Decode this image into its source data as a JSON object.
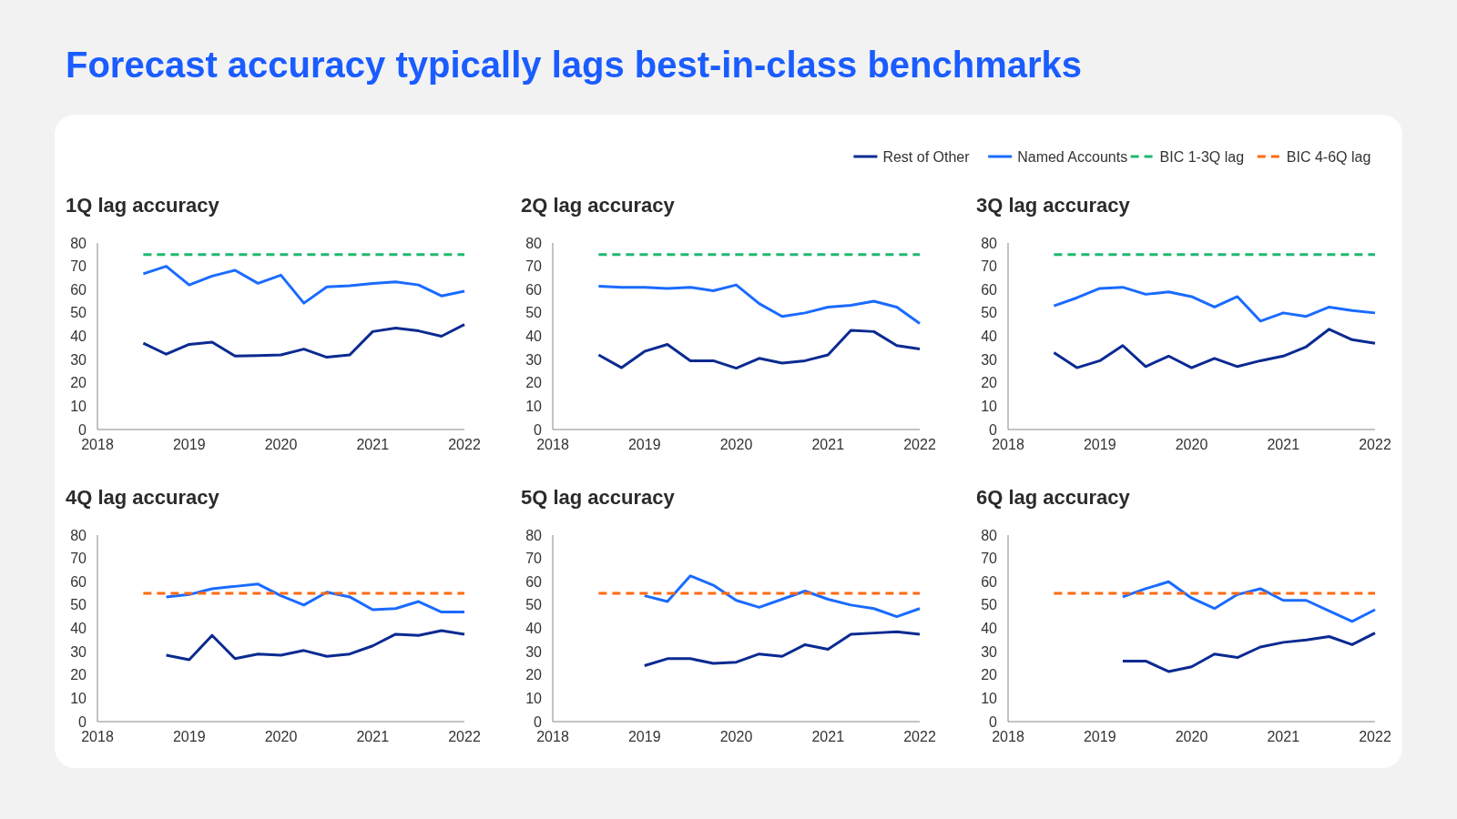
{
  "chart_data": [
    {
      "type": "line",
      "title": "1Q lag accuracy",
      "annotations": [
        "Forecast accuracy typically lags best-in-class benchmarks"
      ],
      "legend": "top right",
      "xlim": [
        2018,
        2022
      ],
      "xticks": [
        2018,
        2019,
        2020,
        2021,
        2022
      ],
      "ylim": [
        0,
        80
      ],
      "yticks": [
        0,
        10,
        20,
        30,
        40,
        50,
        60,
        70,
        80
      ],
      "series": [
        {
          "name": "Rest of Other",
          "color": "#0b2a91",
          "x": [
            2018.5,
            2018.75,
            2019,
            2019.25,
            2019.5,
            2019.75,
            2020,
            2020.25,
            2020.5,
            2020.75,
            2021,
            2021.25,
            2021.5,
            2021.75,
            2022
          ],
          "values": [
            37,
            32.3,
            36.5,
            37.5,
            31.5,
            31.7,
            32,
            34.5,
            31,
            32,
            42,
            43.5,
            42.3,
            40,
            45
          ]
        },
        {
          "name": "Named Accounts",
          "color": "#1a6bff",
          "x": [
            2018.5,
            2018.75,
            2019,
            2019.25,
            2019.5,
            2019.75,
            2020,
            2020.25,
            2020.5,
            2020.75,
            2021,
            2021.25,
            2021.5,
            2021.75,
            2022
          ],
          "values": [
            66.8,
            70,
            62,
            65.8,
            68.3,
            62.7,
            66.2,
            54.2,
            61.2,
            61.7,
            62.6,
            63.3,
            62,
            57.3,
            59.3
          ]
        },
        {
          "name": "BIC 1-3Q lag",
          "color": "#1fb871",
          "line_style": "dashed",
          "x": [
            2018.5,
            2022
          ],
          "values": [
            75,
            75
          ]
        }
      ]
    },
    {
      "type": "line",
      "title": "2Q lag accuracy",
      "legend": "top right",
      "xlim": [
        2018,
        2022
      ],
      "xticks": [
        2018,
        2019,
        2020,
        2021,
        2022
      ],
      "ylim": [
        0,
        80
      ],
      "yticks": [
        0,
        10,
        20,
        30,
        40,
        50,
        60,
        70,
        80
      ],
      "series": [
        {
          "name": "Rest of Other",
          "color": "#0b2a91",
          "x": [
            2018.5,
            2018.75,
            2019,
            2019.25,
            2019.5,
            2019.75,
            2020,
            2020.25,
            2020.5,
            2020.75,
            2021,
            2021.25,
            2021.5,
            2021.75,
            2022
          ],
          "values": [
            32,
            26.5,
            33.5,
            36.5,
            29.5,
            29.5,
            26.3,
            30.5,
            28.5,
            29.5,
            32,
            42.5,
            42,
            36,
            34.5
          ]
        },
        {
          "name": "Named Accounts",
          "color": "#1a6bff",
          "x": [
            2018.5,
            2018.75,
            2019,
            2019.25,
            2019.5,
            2019.75,
            2020,
            2020.25,
            2020.5,
            2020.75,
            2021,
            2021.25,
            2021.5,
            2021.75,
            2022
          ],
          "values": [
            61.5,
            61,
            61,
            60.5,
            61,
            59.5,
            62,
            54,
            48.5,
            50,
            52.5,
            53.3,
            55,
            52.5,
            45.5
          ]
        },
        {
          "name": "BIC 1-3Q lag",
          "color": "#1fb871",
          "line_style": "dashed",
          "x": [
            2018.5,
            2022
          ],
          "values": [
            75,
            75
          ]
        }
      ]
    },
    {
      "type": "line",
      "title": "3Q lag accuracy",
      "legend": "top right",
      "xlim": [
        2018,
        2022
      ],
      "xticks": [
        2018,
        2019,
        2020,
        2021,
        2022
      ],
      "ylim": [
        0,
        80
      ],
      "yticks": [
        0,
        10,
        20,
        30,
        40,
        50,
        60,
        70,
        80
      ],
      "series": [
        {
          "name": "Rest of Other",
          "color": "#0b2a91",
          "x": [
            2018.5,
            2018.75,
            2019,
            2019.25,
            2019.5,
            2019.75,
            2020,
            2020.25,
            2020.5,
            2020.75,
            2021,
            2021.25,
            2021.5,
            2021.75,
            2022
          ],
          "values": [
            33,
            26.5,
            29.5,
            36,
            27,
            31.5,
            26.5,
            30.5,
            27,
            29.5,
            31.5,
            35.5,
            43,
            38.5,
            37
          ]
        },
        {
          "name": "Named Accounts",
          "color": "#1a6bff",
          "x": [
            2018.5,
            2018.75,
            2019,
            2019.25,
            2019.5,
            2019.75,
            2020,
            2020.25,
            2020.5,
            2020.75,
            2021,
            2021.25,
            2021.5,
            2021.75,
            2022
          ],
          "values": [
            53,
            56.5,
            60.5,
            61,
            58,
            59,
            57,
            52.5,
            57,
            46.5,
            50,
            48.5,
            52.5,
            51,
            50
          ]
        },
        {
          "name": "BIC 1-3Q lag",
          "color": "#1fb871",
          "line_style": "dashed",
          "x": [
            2018.5,
            2022
          ],
          "values": [
            75,
            75
          ]
        }
      ]
    },
    {
      "type": "line",
      "title": "4Q lag accuracy",
      "legend": "top right",
      "xlim": [
        2018,
        2022
      ],
      "xticks": [
        2018,
        2019,
        2020,
        2021,
        2022
      ],
      "ylim": [
        0,
        80
      ],
      "yticks": [
        0,
        10,
        20,
        30,
        40,
        50,
        60,
        70,
        80
      ],
      "series": [
        {
          "name": "Rest of Other",
          "color": "#0b2a91",
          "x": [
            2018.75,
            2019,
            2019.25,
            2019.5,
            2019.75,
            2020,
            2020.25,
            2020.5,
            2020.75,
            2021,
            2021.25,
            2021.5,
            2021.75,
            2022
          ],
          "values": [
            28.5,
            26.5,
            37,
            27,
            29,
            28.5,
            30.5,
            28,
            29,
            32.5,
            37.5,
            37,
            39,
            37.5
          ]
        },
        {
          "name": "Named Accounts",
          "color": "#1a6bff",
          "x": [
            2018.75,
            2019,
            2019.25,
            2019.5,
            2019.75,
            2020,
            2020.25,
            2020.5,
            2020.75,
            2021,
            2021.25,
            2021.5,
            2021.75,
            2022
          ],
          "values": [
            53.5,
            54.5,
            57,
            58,
            59,
            54,
            50,
            55.5,
            53.5,
            48,
            48.5,
            51.5,
            47,
            47
          ]
        },
        {
          "name": "BIC 4-6Q lag",
          "color": "#ff6a13",
          "line_style": "dashed",
          "x": [
            2018.5,
            2022
          ],
          "values": [
            55,
            55
          ]
        }
      ]
    },
    {
      "type": "line",
      "title": "5Q lag accuracy",
      "legend": "top right",
      "xlim": [
        2018,
        2022
      ],
      "xticks": [
        2018,
        2019,
        2020,
        2021,
        2022
      ],
      "ylim": [
        0,
        80
      ],
      "yticks": [
        0,
        10,
        20,
        30,
        40,
        50,
        60,
        70,
        80
      ],
      "series": [
        {
          "name": "Rest of Other",
          "color": "#0b2a91",
          "x": [
            2019,
            2019.25,
            2019.5,
            2019.75,
            2020,
            2020.25,
            2020.5,
            2020.75,
            2021,
            2021.25,
            2021.5,
            2021.75,
            2022
          ],
          "values": [
            24,
            27,
            27,
            25,
            25.5,
            29,
            28,
            33,
            31,
            37.5,
            38,
            38.5,
            37.5
          ]
        },
        {
          "name": "Named Accounts",
          "color": "#1a6bff",
          "x": [
            2019,
            2019.25,
            2019.5,
            2019.75,
            2020,
            2020.25,
            2020.5,
            2020.75,
            2021,
            2021.25,
            2021.5,
            2021.75,
            2022
          ],
          "values": [
            54,
            51.5,
            62.5,
            58.5,
            52,
            49,
            52.5,
            56,
            52.5,
            50,
            48.5,
            45,
            48.5
          ]
        },
        {
          "name": "BIC 4-6Q lag",
          "color": "#ff6a13",
          "line_style": "dashed",
          "x": [
            2018.5,
            2022
          ],
          "values": [
            55,
            55
          ]
        }
      ]
    },
    {
      "type": "line",
      "title": "6Q lag accuracy",
      "legend": "top right",
      "xlim": [
        2018,
        2022
      ],
      "xticks": [
        2018,
        2019,
        2020,
        2021,
        2022
      ],
      "ylim": [
        0,
        80
      ],
      "yticks": [
        0,
        10,
        20,
        30,
        40,
        50,
        60,
        70,
        80
      ],
      "series": [
        {
          "name": "Rest of Other",
          "color": "#0b2a91",
          "x": [
            2019.25,
            2019.5,
            2019.75,
            2020,
            2020.25,
            2020.5,
            2020.75,
            2021,
            2021.25,
            2021.5,
            2021.75,
            2022
          ],
          "values": [
            26,
            26,
            21.5,
            23.5,
            29,
            27.5,
            32,
            34,
            35,
            36.5,
            33,
            38
          ]
        },
        {
          "name": "Named Accounts",
          "color": "#1a6bff",
          "x": [
            2019.25,
            2019.5,
            2019.75,
            2020,
            2020.25,
            2020.5,
            2020.75,
            2021,
            2021.25,
            2021.5,
            2021.75,
            2022
          ],
          "values": [
            53.5,
            57,
            60,
            53,
            48.5,
            54.5,
            57,
            52,
            52,
            47.5,
            43,
            48
          ]
        },
        {
          "name": "BIC 4-6Q lag",
          "color": "#ff6a13",
          "line_style": "dashed",
          "x": [
            2018.5,
            2022
          ],
          "values": [
            55,
            55
          ]
        }
      ]
    }
  ]
}
